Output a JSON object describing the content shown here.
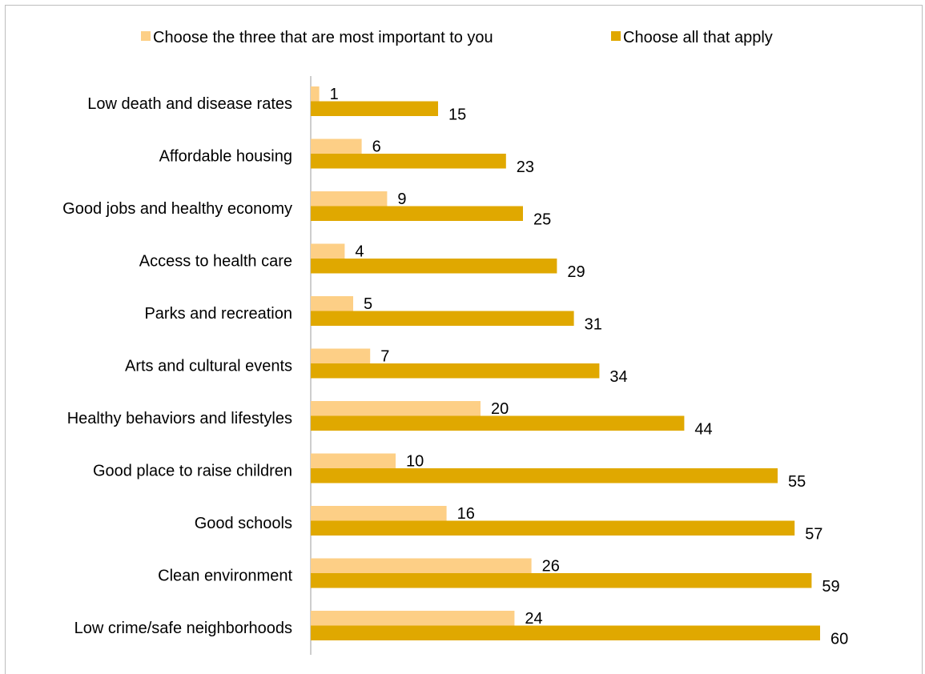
{
  "chart_data": {
    "type": "bar",
    "orientation": "horizontal",
    "categories": [
      "Low death and disease rates",
      "Affordable housing",
      "Good jobs and healthy economy",
      "Access to health care",
      "Parks and recreation",
      "Arts and cultural events",
      "Healthy behaviors and lifestyles",
      "Good place to raise children",
      "Good schools",
      "Clean environment",
      "Low crime/safe neighborhoods"
    ],
    "series": [
      {
        "name": "Choose the three that are most important to you",
        "color": "#fdcf86",
        "values": [
          1,
          6,
          9,
          4,
          5,
          7,
          20,
          10,
          16,
          26,
          24
        ]
      },
      {
        "name": "Choose all that apply",
        "color": "#e0a800",
        "values": [
          15,
          23,
          25,
          29,
          31,
          34,
          44,
          55,
          57,
          59,
          60
        ]
      }
    ],
    "xlim": [
      0,
      60
    ],
    "grid": false,
    "legend": "top"
  }
}
